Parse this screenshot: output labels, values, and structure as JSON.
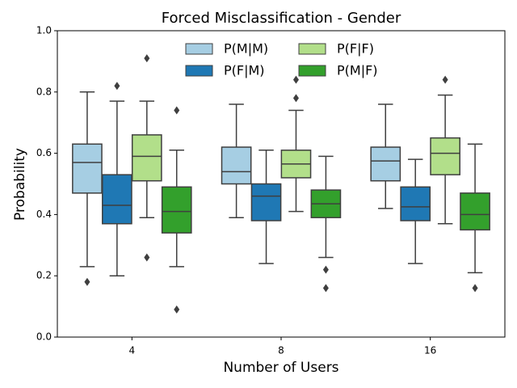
{
  "chart_data": {
    "type": "box",
    "title": "Forced Misclassification - Gender",
    "xlabel": "Number of Users",
    "ylabel": "Probability",
    "categories": [
      "4",
      "8",
      "16"
    ],
    "ylim": [
      0,
      1
    ],
    "yticks": [
      {
        "value": 0,
        "label": "0.0"
      },
      0.2,
      0.4,
      0.6,
      0.8,
      {
        "value": 1,
        "label": "1.0"
      }
    ],
    "legend": "upper center",
    "legend_columns": 2,
    "series": [
      {
        "name": "P(M|M)",
        "color": "#a6cee3",
        "values": [
          {
            "whislo": 0.23,
            "q1": 0.47,
            "med": 0.57,
            "q3": 0.63,
            "whishi": 0.8,
            "fliers": [
              0.18
            ]
          },
          {
            "whislo": 0.39,
            "q1": 0.5,
            "med": 0.54,
            "q3": 0.62,
            "whishi": 0.76
          },
          {
            "whislo": 0.42,
            "q1": 0.51,
            "med": 0.575,
            "q3": 0.62,
            "whishi": 0.76
          }
        ]
      },
      {
        "name": "P(F|M)",
        "color": "#1f78b4",
        "values": [
          {
            "whislo": 0.2,
            "q1": 0.37,
            "med": 0.43,
            "q3": 0.53,
            "whishi": 0.77,
            "fliers": [
              0.82
            ]
          },
          {
            "whislo": 0.24,
            "q1": 0.38,
            "med": 0.46,
            "q3": 0.5,
            "whishi": 0.61
          },
          {
            "whislo": 0.24,
            "q1": 0.38,
            "med": 0.425,
            "q3": 0.49,
            "whishi": 0.58
          }
        ]
      },
      {
        "name": "P(F|F)",
        "color": "#b2df8a",
        "values": [
          {
            "whislo": 0.39,
            "q1": 0.51,
            "med": 0.59,
            "q3": 0.66,
            "whishi": 0.77,
            "fliers": [
              0.91,
              0.26
            ]
          },
          {
            "whislo": 0.41,
            "q1": 0.52,
            "med": 0.565,
            "q3": 0.61,
            "whishi": 0.74,
            "fliers": [
              0.84,
              0.78
            ]
          },
          {
            "whislo": 0.37,
            "q1": 0.53,
            "med": 0.6,
            "q3": 0.65,
            "whishi": 0.79,
            "fliers": [
              0.84
            ]
          }
        ]
      },
      {
        "name": "P(M|F)",
        "color": "#33a02c",
        "values": [
          {
            "whislo": 0.23,
            "q1": 0.34,
            "med": 0.41,
            "q3": 0.49,
            "whishi": 0.61,
            "fliers": [
              0.74,
              0.09
            ]
          },
          {
            "whislo": 0.26,
            "q1": 0.39,
            "med": 0.435,
            "q3": 0.48,
            "whishi": 0.59,
            "fliers": [
              0.22,
              0.16
            ]
          },
          {
            "whislo": 0.21,
            "q1": 0.35,
            "med": 0.4,
            "q3": 0.47,
            "whishi": 0.63,
            "fliers": [
              0.16
            ]
          }
        ]
      }
    ]
  }
}
